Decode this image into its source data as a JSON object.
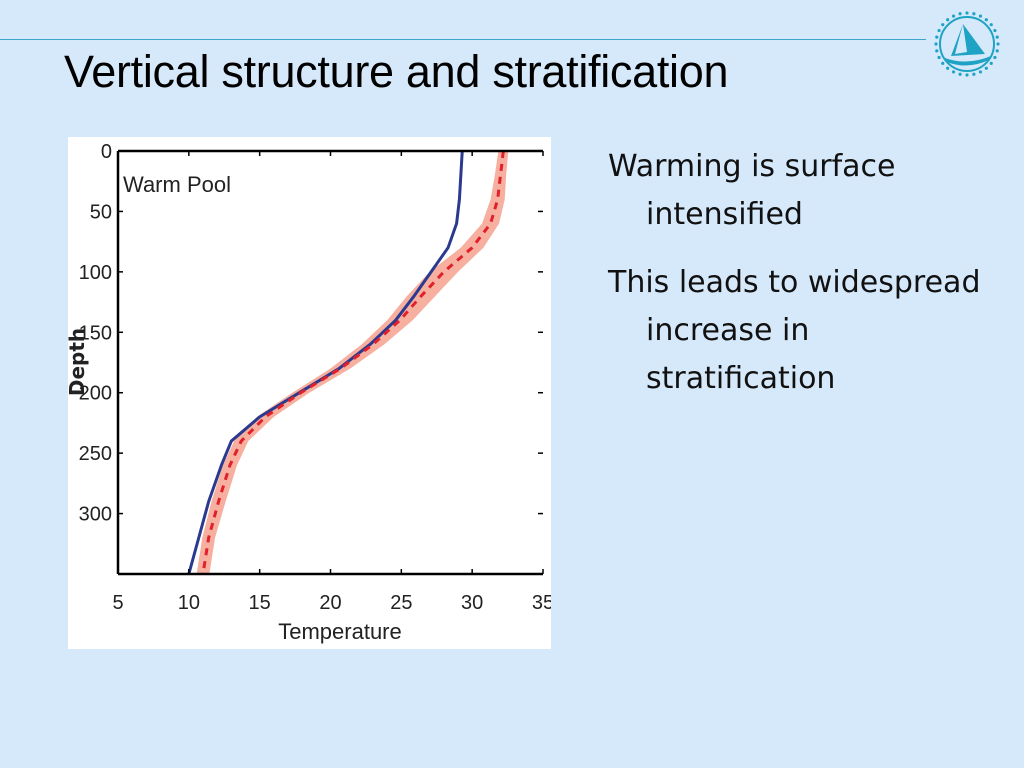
{
  "slide": {
    "title": "Vertical structure and stratification",
    "bullets": [
      "Warming is surface intensified",
      "This leads to widespread increase in stratification"
    ]
  },
  "logo": {
    "icon": "ship-in-circle-logo",
    "color": "#1fa3c4"
  },
  "chart_data": {
    "type": "line",
    "annotation": "Warm Pool",
    "xlabel": "Temperature",
    "ylabel": "Depth",
    "xlim": [
      5,
      35
    ],
    "ylim": [
      350,
      0
    ],
    "y_inverted": true,
    "xticks": [
      5,
      10,
      15,
      20,
      25,
      30,
      35
    ],
    "yticks": [
      0,
      50,
      100,
      150,
      200,
      250,
      300
    ],
    "series": [
      {
        "style": "solid",
        "color": "#2b3a8f",
        "depth": [
          0,
          20,
          40,
          60,
          80,
          100,
          120,
          140,
          160,
          180,
          200,
          220,
          240,
          260,
          290,
          320,
          350
        ],
        "temperature": [
          29.3,
          29.2,
          29.1,
          28.9,
          28.3,
          27.1,
          25.9,
          24.6,
          22.8,
          20.6,
          17.8,
          15.0,
          13.0,
          12.3,
          11.4,
          10.7,
          10.0
        ]
      },
      {
        "style": "dashed",
        "color": "#e0202a",
        "band_color": "#f7b0a0",
        "depth": [
          0,
          20,
          40,
          60,
          80,
          100,
          120,
          140,
          160,
          180,
          200,
          220,
          240,
          260,
          290,
          320,
          350
        ],
        "temperature": [
          32.2,
          32.0,
          31.8,
          31.3,
          30.0,
          28.0,
          26.4,
          24.9,
          23.0,
          20.7,
          17.9,
          15.4,
          13.7,
          12.9,
          12.1,
          11.4,
          11.0
        ],
        "band_halfwidth": [
          0.35,
          0.4,
          0.5,
          0.6,
          0.8,
          1.0,
          1.0,
          0.9,
          0.8,
          0.7,
          0.6,
          0.6,
          0.5,
          0.5,
          0.5,
          0.45,
          0.45
        ]
      }
    ]
  }
}
